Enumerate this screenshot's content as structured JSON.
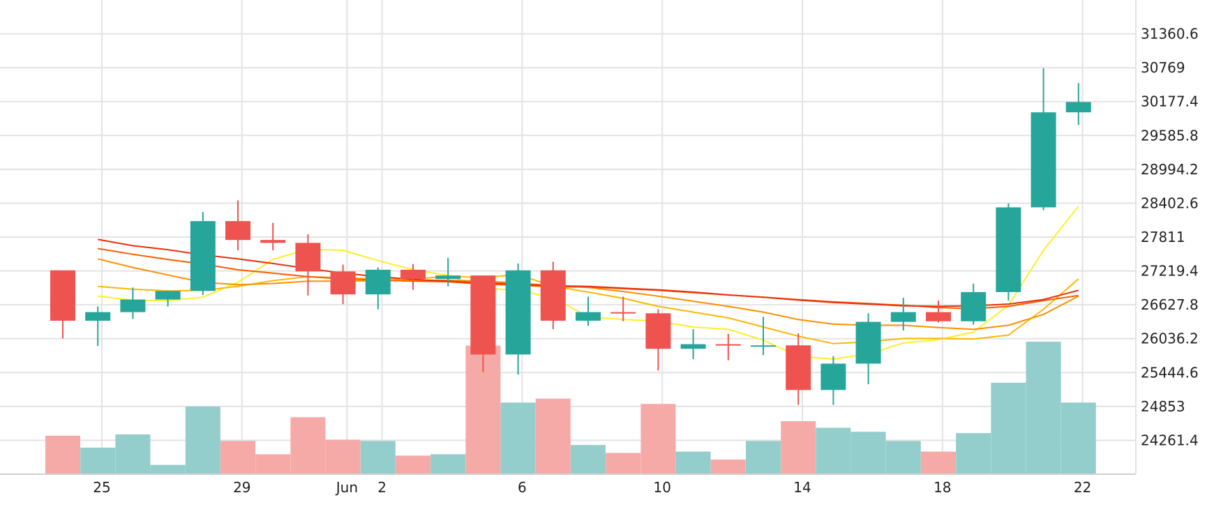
{
  "chart_data": {
    "type": "candlestick",
    "x_tick_labels": [
      "25",
      "29",
      "Jun",
      "2",
      "6",
      "10",
      "14",
      "18",
      "22"
    ],
    "y_tick_labels": [
      "31360.6",
      "30769",
      "30177.4",
      "29585.8",
      "28994.2",
      "28402.6",
      "27811",
      "27219.4",
      "26627.8",
      "26036.2",
      "25444.6",
      "24853",
      "24261.4"
    ],
    "ylim": [
      23670,
      31952
    ],
    "volume_max": 1.0,
    "colors": {
      "up": "#26a69a",
      "down": "#ef5350",
      "up_volume": "#93cdcc",
      "down_volume": "#f5aaa8",
      "grid": "#e3e3e3"
    },
    "x_ticks": [
      {
        "label_index": 0,
        "day": 1
      },
      {
        "label_index": 1,
        "day": 5
      },
      {
        "label_index": 2,
        "day": 8
      },
      {
        "label_index": 3,
        "day": 9
      },
      {
        "label_index": 4,
        "day": 13
      },
      {
        "label_index": 5,
        "day": 17
      },
      {
        "label_index": 6,
        "day": 21
      },
      {
        "label_index": 7,
        "day": 25
      },
      {
        "label_index": 8,
        "day": 29
      }
    ],
    "candles": [
      {
        "date": "May 24",
        "open": 27230,
        "high": 27230,
        "low": 26040,
        "close": 26350,
        "volume": 0.29
      },
      {
        "date": "May 25",
        "open": 26350,
        "high": 26600,
        "low": 25910,
        "close": 26500,
        "volume": 0.2
      },
      {
        "date": "May 26",
        "open": 26500,
        "high": 26930,
        "low": 26380,
        "close": 26720,
        "volume": 0.3
      },
      {
        "date": "May 27",
        "open": 26720,
        "high": 26880,
        "low": 26600,
        "close": 26870,
        "volume": 0.07
      },
      {
        "date": "May 28",
        "open": 26870,
        "high": 28250,
        "low": 26800,
        "close": 28090,
        "volume": 0.51
      },
      {
        "date": "May 29",
        "open": 28090,
        "high": 28450,
        "low": 27580,
        "close": 27760,
        "volume": 0.25
      },
      {
        "date": "May 30",
        "open": 27760,
        "high": 28060,
        "low": 27580,
        "close": 27710,
        "volume": 0.15
      },
      {
        "date": "May 31",
        "open": 27710,
        "high": 27860,
        "low": 26790,
        "close": 27210,
        "volume": 0.43
      },
      {
        "date": "Jun 1",
        "open": 27210,
        "high": 27330,
        "low": 26640,
        "close": 26810,
        "volume": 0.26
      },
      {
        "date": "Jun 2",
        "open": 26810,
        "high": 27280,
        "low": 26550,
        "close": 27240,
        "volume": 0.25
      },
      {
        "date": "Jun 3",
        "open": 27240,
        "high": 27340,
        "low": 26890,
        "close": 27080,
        "volume": 0.14
      },
      {
        "date": "Jun 4",
        "open": 27080,
        "high": 27450,
        "low": 26950,
        "close": 27140,
        "volume": 0.15
      },
      {
        "date": "Jun 5",
        "open": 27140,
        "high": 27140,
        "low": 25450,
        "close": 25760,
        "volume": 0.97
      },
      {
        "date": "Jun 6",
        "open": 25760,
        "high": 27350,
        "low": 25410,
        "close": 27230,
        "volume": 0.54
      },
      {
        "date": "Jun 7",
        "open": 27230,
        "high": 27380,
        "low": 26200,
        "close": 26350,
        "volume": 0.57
      },
      {
        "date": "Jun 8",
        "open": 26350,
        "high": 26770,
        "low": 26260,
        "close": 26500,
        "volume": 0.22
      },
      {
        "date": "Jun 9",
        "open": 26500,
        "high": 26770,
        "low": 26340,
        "close": 26480,
        "volume": 0.16
      },
      {
        "date": "Jun 10",
        "open": 26480,
        "high": 26550,
        "low": 25480,
        "close": 25860,
        "volume": 0.53
      },
      {
        "date": "Jun 11",
        "open": 25860,
        "high": 26200,
        "low": 25680,
        "close": 25940,
        "volume": 0.17
      },
      {
        "date": "Jun 12",
        "open": 25940,
        "high": 26120,
        "low": 25660,
        "close": 25920,
        "volume": 0.11
      },
      {
        "date": "Jun 13",
        "open": 25920,
        "high": 26420,
        "low": 25750,
        "close": 25920,
        "volume": 0.25
      },
      {
        "date": "Jun 14",
        "open": 25920,
        "high": 26130,
        "low": 24880,
        "close": 25140,
        "volume": 0.4
      },
      {
        "date": "Jun 15",
        "open": 25140,
        "high": 25730,
        "low": 24880,
        "close": 25600,
        "volume": 0.35
      },
      {
        "date": "Jun 16",
        "open": 25600,
        "high": 26480,
        "low": 25240,
        "close": 26330,
        "volume": 0.32
      },
      {
        "date": "Jun 17",
        "open": 26330,
        "high": 26750,
        "low": 26180,
        "close": 26500,
        "volume": 0.25
      },
      {
        "date": "Jun 18",
        "open": 26500,
        "high": 26700,
        "low": 26320,
        "close": 26340,
        "volume": 0.17
      },
      {
        "date": "Jun 19",
        "open": 26340,
        "high": 27000,
        "low": 26280,
        "close": 26850,
        "volume": 0.31
      },
      {
        "date": "Jun 20",
        "open": 26850,
        "high": 28400,
        "low": 26700,
        "close": 28330,
        "volume": 0.69
      },
      {
        "date": "Jun 21",
        "open": 28330,
        "high": 30760,
        "low": 28280,
        "close": 29990,
        "volume": 1.0
      },
      {
        "date": "Jun 22",
        "open": 29990,
        "high": 30500,
        "low": 29770,
        "close": 30170,
        "volume": 0.54
      }
    ],
    "ma_lines": [
      {
        "color": "#ffee2a",
        "values": [
          null,
          26780,
          26710,
          26700,
          26760,
          27020,
          27420,
          27600,
          27580,
          27400,
          27240,
          27140,
          26920,
          26880,
          26750,
          26420,
          26370,
          26340,
          26240,
          26200,
          26010,
          25730,
          25680,
          25770,
          25960,
          26020,
          26150,
          26620,
          27580,
          28350
        ]
      },
      {
        "color": "#ffb700",
        "values": [
          null,
          26950,
          26900,
          26870,
          26880,
          26950,
          27050,
          27120,
          27100,
          27080,
          27070,
          27130,
          27100,
          27160,
          26950,
          26850,
          26740,
          26600,
          26500,
          26400,
          26240,
          26080,
          25950,
          25980,
          26040,
          26040,
          26030,
          26100,
          26550,
          27080
        ]
      },
      {
        "color": "#ff8f00",
        "values": [
          null,
          27430,
          27280,
          27150,
          27020,
          26980,
          27000,
          27040,
          27040,
          27050,
          27050,
          27060,
          27040,
          27010,
          26960,
          26930,
          26860,
          26780,
          26690,
          26600,
          26500,
          26370,
          26290,
          26270,
          26270,
          26230,
          26200,
          26270,
          26460,
          26780
        ]
      },
      {
        "color": "#ff5a00",
        "values": [
          null,
          27610,
          27510,
          27420,
          27340,
          27240,
          27180,
          27120,
          27080,
          27060,
          27040,
          27030,
          26990,
          26970,
          26940,
          26940,
          26910,
          26880,
          26840,
          26800,
          26760,
          26720,
          26680,
          26650,
          26620,
          26580,
          26560,
          26600,
          26700,
          26790
        ]
      },
      {
        "color": "#e8300e",
        "values": [
          null,
          27770,
          27660,
          27590,
          27500,
          27430,
          27350,
          27260,
          27180,
          27120,
          27070,
          27040,
          27010,
          26990,
          26960,
          26950,
          26920,
          26890,
          26850,
          26800,
          26760,
          26710,
          26670,
          26640,
          26610,
          26600,
          26610,
          26640,
          26720,
          26880
        ]
      }
    ]
  }
}
